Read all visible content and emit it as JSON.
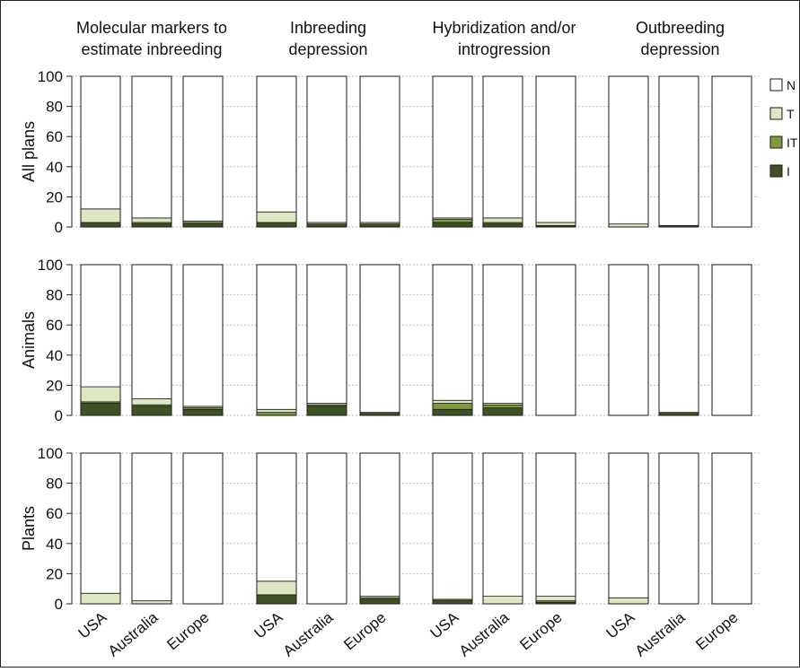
{
  "chart_data": {
    "type": "bar",
    "stacked": true,
    "ylim": [
      0,
      100
    ],
    "yticks": [
      0,
      20,
      40,
      60,
      80,
      100
    ],
    "grid": true,
    "legend_position": "right",
    "groups": [
      {
        "lines": [
          "Molecular markers to",
          "estimate inbreeding"
        ]
      },
      {
        "lines": [
          "Inbreeding",
          "depression"
        ]
      },
      {
        "lines": [
          "Hybridization and/or",
          "introgression"
        ]
      },
      {
        "lines": [
          "Outbreeding",
          "depression"
        ]
      }
    ],
    "categories": [
      "USA",
      "Australia",
      "Europe"
    ],
    "series": [
      {
        "name": "I",
        "color": "#3f5226"
      },
      {
        "name": "IT",
        "color": "#7f9c3c"
      },
      {
        "name": "T",
        "color": "#dde8c2"
      },
      {
        "name": "N",
        "color": "#ffffff"
      }
    ],
    "legend_order": [
      "N",
      "T",
      "IT",
      "I"
    ],
    "panels": [
      {
        "ylabel": "All plans",
        "values": [
          [
            [
              3,
              0,
              9,
              88
            ],
            [
              2,
              1,
              3,
              94
            ],
            [
              2,
              1,
              1,
              96
            ]
          ],
          [
            [
              3,
              0,
              7,
              90
            ],
            [
              2,
              0,
              1,
              97
            ],
            [
              2,
              0,
              1,
              97
            ]
          ],
          [
            [
              3,
              2,
              1,
              94
            ],
            [
              2,
              1,
              3,
              94
            ],
            [
              1,
              0,
              2,
              97
            ]
          ],
          [
            [
              0,
              0,
              2,
              98
            ],
            [
              1,
              0,
              0,
              99
            ],
            [
              0,
              0,
              0,
              100
            ]
          ]
        ]
      },
      {
        "ylabel": "Animals",
        "values": [
          [
            [
              8,
              1,
              10,
              81
            ],
            [
              6,
              1,
              4,
              89
            ],
            [
              4,
              1,
              1,
              94
            ]
          ],
          [
            [
              0,
              2,
              2,
              96
            ],
            [
              6,
              1,
              1,
              92
            ],
            [
              2,
              0,
              0,
              98
            ]
          ],
          [
            [
              4,
              4,
              2,
              90
            ],
            [
              5,
              2,
              1,
              92
            ],
            [
              0,
              0,
              0,
              100
            ]
          ],
          [
            [
              0,
              0,
              0,
              100
            ],
            [
              2,
              0,
              0,
              98
            ],
            [
              0,
              0,
              0,
              100
            ]
          ]
        ]
      },
      {
        "ylabel": "Plants",
        "values": [
          [
            [
              0,
              0,
              7,
              93
            ],
            [
              0,
              0,
              2,
              98
            ],
            [
              0,
              0,
              0,
              100
            ]
          ],
          [
            [
              6,
              0,
              9,
              85
            ],
            [
              0,
              0,
              0,
              100
            ],
            [
              3,
              1,
              1,
              95
            ]
          ],
          [
            [
              2,
              1,
              0,
              97
            ],
            [
              0,
              0,
              5,
              95
            ],
            [
              1,
              1,
              3,
              95
            ]
          ],
          [
            [
              0,
              0,
              4,
              96
            ],
            [
              0,
              0,
              0,
              100
            ],
            [
              0,
              0,
              0,
              100
            ]
          ]
        ]
      }
    ]
  }
}
